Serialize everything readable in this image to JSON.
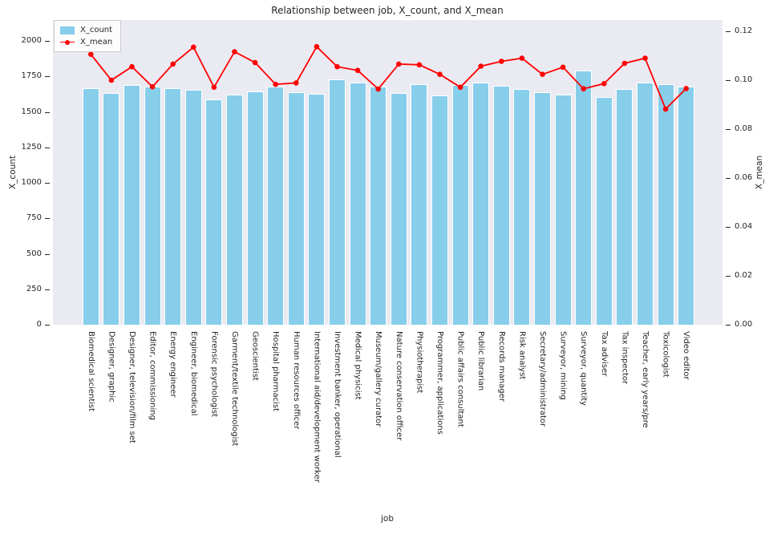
{
  "chart_data": {
    "type": "bar",
    "title": "Relationship between job, X_count, and X_mean",
    "xlabel": "job",
    "ylabel_left": "X_count",
    "ylabel_right": "X_mean",
    "categories": [
      "Biomedical scientist",
      "Designer, graphic",
      "Designer, television/film set",
      "Editor, commissioning",
      "Energy engineer",
      "Engineer, biomedical",
      "Forensic psychologist",
      "Garment/textile technologist",
      "Geoscientist",
      "Hospital pharmacist",
      "Human resources officer",
      "International aid/development worker",
      "Investment banker, operational",
      "Medical physicist",
      "Museum/gallery curator",
      "Nature conservation officer",
      "Physiotherapist",
      "Programmer, applications",
      "Public affairs consultant",
      "Public librarian",
      "Records manager",
      "Risk analyst",
      "Secretary/administrator",
      "Surveyor, mining",
      "Surveyor, quantity",
      "Tax adviser",
      "Tax inspector",
      "Teacher, early years/pre",
      "Toxicologist",
      "Video editor"
    ],
    "series": [
      {
        "name": "X_count",
        "kind": "bar",
        "axis": "left",
        "color": "#87ceeb",
        "values": [
          1668,
          1635,
          1688,
          1676,
          1668,
          1655,
          1588,
          1620,
          1642,
          1680,
          1640,
          1626,
          1727,
          1704,
          1680,
          1633,
          1693,
          1614,
          1687,
          1704,
          1684,
          1663,
          1640,
          1622,
          1791,
          1605,
          1663,
          1704,
          1695,
          1680
        ]
      },
      {
        "name": "X_mean",
        "kind": "line",
        "axis": "right",
        "color": "#ff0000",
        "values": [
          0.1106,
          0.1,
          0.1055,
          0.0973,
          0.1066,
          0.1135,
          0.0971,
          0.1116,
          0.1072,
          0.0983,
          0.0989,
          0.1137,
          0.1055,
          0.104,
          0.0964,
          0.1066,
          0.1063,
          0.1024,
          0.0971,
          0.1057,
          0.1077,
          0.109,
          0.1024,
          0.1053,
          0.0965,
          0.0986,
          0.1069,
          0.109,
          0.0882,
          0.0966
        ]
      }
    ],
    "axes": {
      "left_ticklabels": [
        "0",
        "250",
        "500",
        "750",
        "1000",
        "1250",
        "1500",
        "1750",
        "2000"
      ],
      "right_ticklabels": [
        "0.00",
        "0.02",
        "0.04",
        "0.06",
        "0.08",
        "0.10",
        "0.12"
      ],
      "ylim_left": [
        0,
        2147
      ],
      "ylim_right": [
        0,
        0.1246
      ]
    },
    "legend": {
      "position": "upper left",
      "entries": [
        "X_count",
        "X_mean"
      ]
    },
    "grid": false,
    "plot_background": "#eaeaf2"
  }
}
